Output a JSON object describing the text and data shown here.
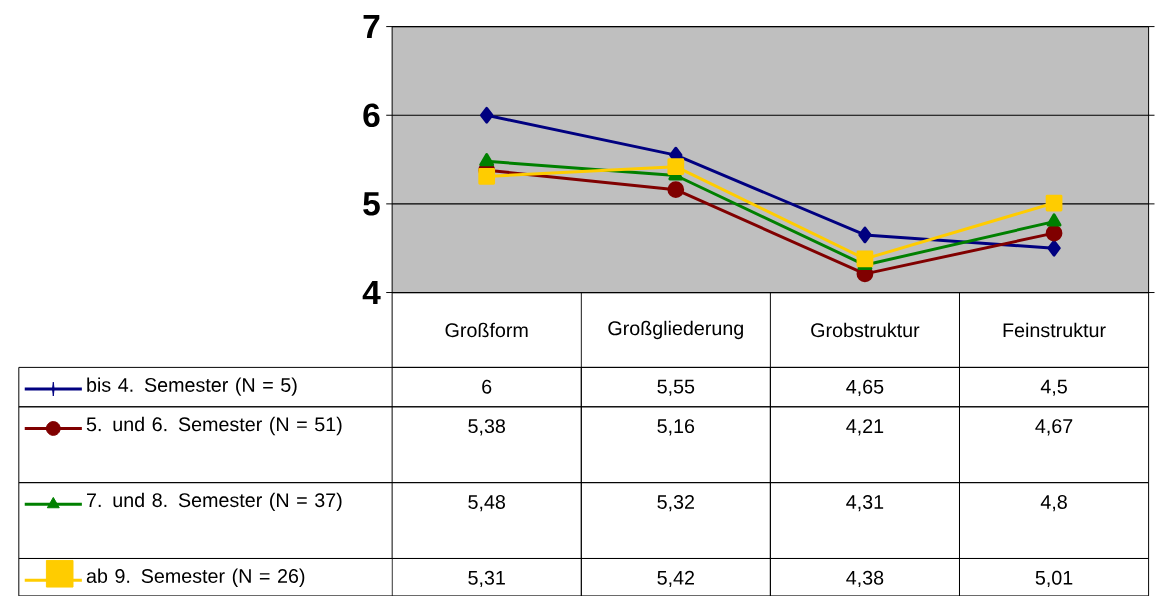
{
  "chart_data": {
    "type": "line",
    "categories": [
      "Großform",
      "Großgliederung",
      "Grobstruktur",
      "Feinstruktur"
    ],
    "series": [
      {
        "name": "bis 4. Semester (N = 5)",
        "color": "#000080",
        "marker": "diamond",
        "values": [
          6,
          5.55,
          4.65,
          4.5
        ],
        "value_labels": [
          "6",
          "5,55",
          "4,65",
          "4,5"
        ]
      },
      {
        "name": "5. und 6. Semester (N = 51)",
        "color": "#800000",
        "marker": "circle",
        "values": [
          5.38,
          5.16,
          4.21,
          4.67
        ],
        "value_labels": [
          "5,38",
          "5,16",
          "4,21",
          "4,67"
        ]
      },
      {
        "name": "7. und 8. Semester (N = 37)",
        "color": "#008000",
        "marker": "triangle",
        "values": [
          5.48,
          5.32,
          4.31,
          4.8
        ],
        "value_labels": [
          "5,48",
          "5,32",
          "4,31",
          "4,8"
        ]
      },
      {
        "name": "ab 9. Semester (N = 26)",
        "color": "#ffcc00",
        "marker": "square",
        "values": [
          5.31,
          5.42,
          4.38,
          5.01
        ],
        "value_labels": [
          "5,31",
          "5,42",
          "4,38",
          "5,01"
        ]
      }
    ],
    "ylim": [
      4,
      7
    ],
    "yticks": [
      4,
      5,
      6,
      7
    ],
    "grid": "y",
    "legend": "bottom left"
  }
}
